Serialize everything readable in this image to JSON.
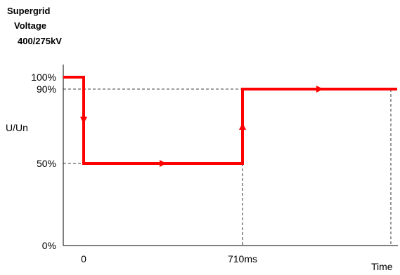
{
  "chart_data": {
    "type": "line",
    "title": [
      "Supergrid",
      "Voltage",
      "400/275kV"
    ],
    "xlabel": "Time",
    "ylabel": "U/Un",
    "y_ticks": [
      {
        "value": 0,
        "label": "0%"
      },
      {
        "value": 50,
        "label": "50%"
      },
      {
        "value": 90,
        "label": "90%"
      },
      {
        "value": 100,
        "label": "100%"
      }
    ],
    "x_ticks": [
      {
        "value": 0,
        "label": "0"
      },
      {
        "value": 710,
        "label": "710ms"
      }
    ],
    "ylim": [
      0,
      100
    ],
    "xlim": [
      -100,
      1400
    ],
    "grid": false,
    "series": [
      {
        "color": "#ff0000",
        "points": [
          {
            "x": -100,
            "y": 100
          },
          {
            "x": 0,
            "y": 100
          },
          {
            "x": 0,
            "y": 50
          },
          {
            "x": 710,
            "y": 50
          },
          {
            "x": 710,
            "y": 90
          },
          {
            "x": 1400,
            "y": 90
          }
        ]
      }
    ]
  }
}
